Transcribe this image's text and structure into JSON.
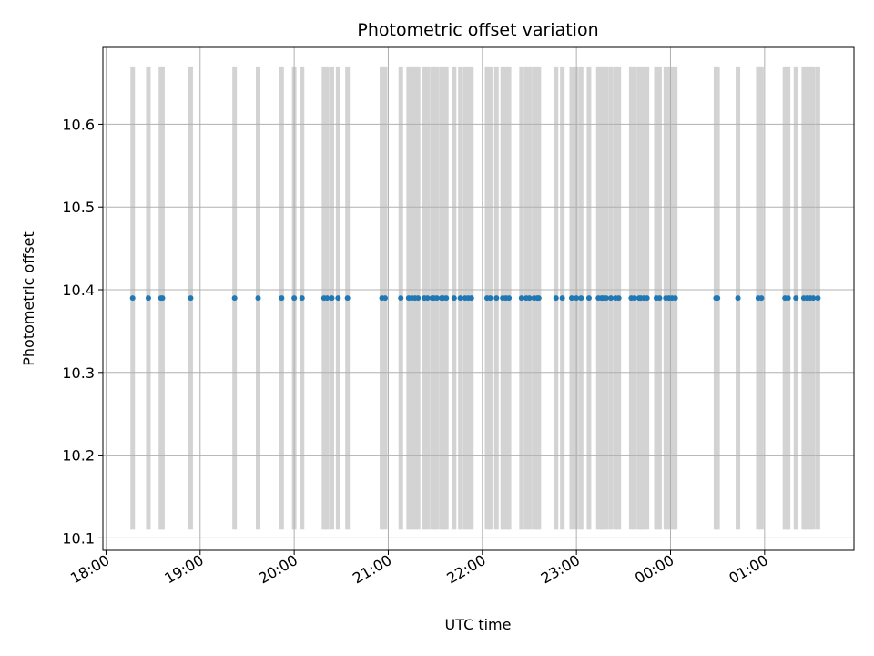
{
  "chart_data": {
    "type": "scatter",
    "title": "Photometric offset variation",
    "xlabel": "UTC time",
    "ylabel": "Photometric offset",
    "xlim": [
      "17:58",
      "25:57"
    ],
    "ylim": [
      10.085,
      10.693
    ],
    "x_ticks": [
      "18:00",
      "19:00",
      "20:00",
      "21:00",
      "22:00",
      "23:00",
      "00:00",
      "01:00"
    ],
    "y_ticks": [
      "10.1",
      "10.2",
      "10.3",
      "10.4",
      "10.5",
      "10.6"
    ],
    "grid": true,
    "point_color": "#1f77b4",
    "band_color": "#d3d3d3",
    "band_range": [
      10.11,
      10.67
    ],
    "series": [
      {
        "x": [
          "18:17",
          "18:27",
          "18:35",
          "18:36",
          "18:54",
          "19:22",
          "19:37",
          "19:52",
          "20:00",
          "20:05",
          "20:19",
          "20:21",
          "20:24",
          "20:28",
          "20:34",
          "20:56",
          "20:58",
          "21:08",
          "21:13",
          "21:15",
          "21:17",
          "21:19",
          "21:23",
          "21:25",
          "21:28",
          "21:29",
          "21:31",
          "21:34",
          "21:35",
          "21:37",
          "21:42",
          "21:46",
          "21:49",
          "21:51",
          "21:53",
          "22:03",
          "22:05",
          "22:09",
          "22:13",
          "22:15",
          "22:17",
          "22:25",
          "22:28",
          "22:30",
          "22:33",
          "22:35",
          "22:36",
          "22:47",
          "22:51",
          "22:57",
          "23:00",
          "23:03",
          "23:08",
          "23:14",
          "23:16",
          "23:17",
          "23:19",
          "23:22",
          "23:25",
          "23:27",
          "23:35",
          "23:37",
          "23:40",
          "23:41",
          "23:43",
          "23:45",
          "23:51",
          "23:53",
          "23:57",
          "23:59",
          "24:01",
          "24:03",
          "24:29",
          "24:30",
          "24:43",
          "24:56",
          "24:58",
          "25:13",
          "25:15",
          "25:20",
          "25:25",
          "25:27",
          "25:29",
          "25:31",
          "25:34"
        ],
        "y": [
          10.39,
          10.39,
          10.39,
          10.39,
          10.39,
          10.39,
          10.39,
          10.39,
          10.39,
          10.39,
          10.39,
          10.39,
          10.39,
          10.39,
          10.39,
          10.39,
          10.39,
          10.39,
          10.39,
          10.39,
          10.39,
          10.39,
          10.39,
          10.39,
          10.39,
          10.39,
          10.39,
          10.39,
          10.39,
          10.39,
          10.39,
          10.39,
          10.39,
          10.39,
          10.39,
          10.39,
          10.39,
          10.39,
          10.39,
          10.39,
          10.39,
          10.39,
          10.39,
          10.39,
          10.39,
          10.39,
          10.39,
          10.39,
          10.39,
          10.39,
          10.39,
          10.39,
          10.39,
          10.39,
          10.39,
          10.39,
          10.39,
          10.39,
          10.39,
          10.39,
          10.39,
          10.39,
          10.39,
          10.39,
          10.39,
          10.39,
          10.39,
          10.39,
          10.39,
          10.39,
          10.39,
          10.39,
          10.39,
          10.39,
          10.39,
          10.39,
          10.39,
          10.39,
          10.39,
          10.39,
          10.39,
          10.39,
          10.39,
          10.39,
          10.39
        ]
      }
    ]
  }
}
